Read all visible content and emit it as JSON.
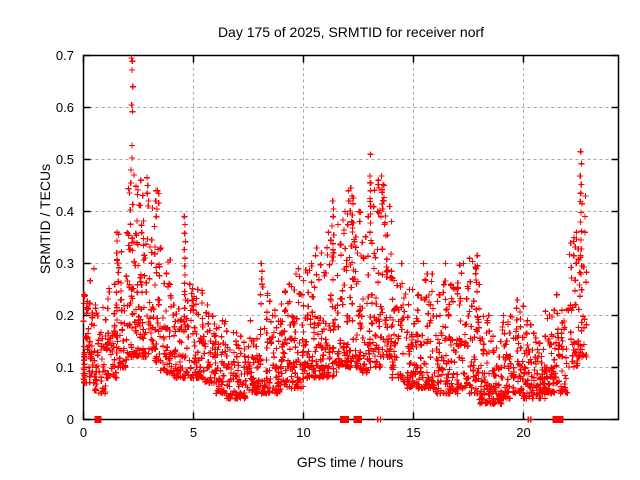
{
  "chart_data": {
    "type": "scatter",
    "title": "Day 175 of 2025, SRMTID for receiver norf",
    "xlabel": "GPS time / hours",
    "ylabel": "SRMTID / TECUs",
    "xlim": [
      0,
      24.32
    ],
    "ylim": [
      0,
      0.7
    ],
    "xtick_values": [
      0,
      5,
      10,
      15,
      20
    ],
    "xtick_labels": [
      "0",
      "5",
      "10",
      "15",
      "20"
    ],
    "ytick_values": [
      0,
      0.1,
      0.2,
      0.3,
      0.4,
      0.5,
      0.6,
      0.7
    ],
    "ytick_labels": [
      "0",
      "0.1",
      "0.2",
      "0.3",
      "0.4",
      "0.5",
      "0.6",
      "0.7"
    ],
    "grid": true,
    "legend": "none",
    "marker": "plus",
    "marker_color": "#ff0000",
    "grid_color": "#a6a6a6",
    "border_color": "#000000",
    "background_color": "#ffffff",
    "points_summary": {
      "note": "dense 30s-cadence scatter; bins = [start_hour, count, y_min, y_max, bin_width(default 0.5)]",
      "skew": 1.9,
      "seed": 20250175,
      "bins": [
        [
          0.0,
          16,
          0.07,
          0.24,
          0.05
        ],
        [
          0.0,
          52,
          0.07,
          0.29
        ],
        [
          0.5,
          48,
          0.05,
          0.22
        ],
        [
          1.0,
          50,
          0.08,
          0.26
        ],
        [
          1.5,
          58,
          0.1,
          0.36
        ],
        [
          2.0,
          72,
          0.12,
          0.48
        ],
        [
          2.5,
          60,
          0.12,
          0.46
        ],
        [
          3.0,
          55,
          0.11,
          0.44
        ],
        [
          3.5,
          50,
          0.09,
          0.33
        ],
        [
          4.0,
          45,
          0.08,
          0.22
        ],
        [
          4.5,
          48,
          0.08,
          0.26
        ],
        [
          5.0,
          50,
          0.08,
          0.25
        ],
        [
          5.5,
          48,
          0.07,
          0.22
        ],
        [
          6.0,
          48,
          0.05,
          0.19
        ],
        [
          6.5,
          46,
          0.04,
          0.17
        ],
        [
          7.0,
          46,
          0.04,
          0.16
        ],
        [
          7.5,
          48,
          0.05,
          0.19
        ],
        [
          8.0,
          50,
          0.05,
          0.26
        ],
        [
          8.5,
          48,
          0.05,
          0.21
        ],
        [
          9.0,
          50,
          0.06,
          0.26
        ],
        [
          9.5,
          52,
          0.06,
          0.28
        ],
        [
          10.0,
          52,
          0.08,
          0.3
        ],
        [
          10.5,
          52,
          0.08,
          0.32
        ],
        [
          11.0,
          55,
          0.08,
          0.36
        ],
        [
          11.5,
          56,
          0.1,
          0.4
        ],
        [
          12.0,
          60,
          0.1,
          0.44
        ],
        [
          12.5,
          55,
          0.09,
          0.4
        ],
        [
          13.0,
          55,
          0.1,
          0.46
        ],
        [
          13.5,
          52,
          0.12,
          0.45
        ],
        [
          14.0,
          50,
          0.08,
          0.3
        ],
        [
          14.5,
          48,
          0.06,
          0.25
        ],
        [
          15.0,
          48,
          0.06,
          0.24
        ],
        [
          15.5,
          48,
          0.06,
          0.28
        ],
        [
          16.0,
          50,
          0.05,
          0.3
        ],
        [
          16.5,
          52,
          0.05,
          0.26
        ],
        [
          17.0,
          52,
          0.06,
          0.3
        ],
        [
          17.5,
          50,
          0.05,
          0.31
        ],
        [
          18.0,
          52,
          0.03,
          0.2
        ],
        [
          18.5,
          52,
          0.03,
          0.16
        ],
        [
          19.0,
          50,
          0.04,
          0.2
        ],
        [
          19.5,
          50,
          0.05,
          0.23
        ],
        [
          20.0,
          52,
          0.04,
          0.19
        ],
        [
          20.5,
          52,
          0.04,
          0.16
        ],
        [
          21.0,
          52,
          0.05,
          0.21
        ],
        [
          21.5,
          48,
          0.05,
          0.24
        ],
        [
          22.0,
          42,
          0.1,
          0.36
        ],
        [
          22.5,
          34,
          0.12,
          0.43,
          0.38
        ]
      ]
    },
    "outlier_points": [
      [
        2.18,
        0.695
      ],
      [
        2.22,
        0.689
      ],
      [
        2.2,
        0.672
      ],
      [
        2.24,
        0.64
      ],
      [
        2.19,
        0.605
      ],
      [
        2.23,
        0.592
      ],
      [
        2.2,
        0.527
      ],
      [
        2.21,
        0.503
      ],
      [
        2.3,
        0.47
      ],
      [
        2.15,
        0.455
      ],
      [
        2.88,
        0.465
      ],
      [
        2.92,
        0.45
      ],
      [
        2.9,
        0.435
      ],
      [
        2.95,
        0.42
      ],
      [
        3.3,
        0.44
      ],
      [
        3.28,
        0.42
      ],
      [
        3.34,
        0.405
      ],
      [
        3.31,
        0.39
      ],
      [
        4.58,
        0.39
      ],
      [
        4.62,
        0.375
      ],
      [
        4.6,
        0.358
      ],
      [
        4.63,
        0.342
      ],
      [
        4.58,
        0.327
      ],
      [
        4.61,
        0.31
      ],
      [
        4.6,
        0.295
      ],
      [
        4.62,
        0.278
      ],
      [
        4.59,
        0.262
      ],
      [
        4.6,
        0.246
      ],
      [
        4.63,
        0.23
      ],
      [
        4.6,
        0.214
      ],
      [
        4.58,
        0.198
      ],
      [
        4.61,
        0.182
      ],
      [
        8.08,
        0.3
      ],
      [
        8.12,
        0.285
      ],
      [
        8.1,
        0.27
      ],
      [
        8.15,
        0.255
      ],
      [
        8.05,
        0.24
      ],
      [
        9.78,
        0.29
      ],
      [
        9.82,
        0.275
      ],
      [
        10.6,
        0.33
      ],
      [
        10.55,
        0.315
      ],
      [
        11.33,
        0.42
      ],
      [
        11.37,
        0.405
      ],
      [
        11.35,
        0.39
      ],
      [
        11.3,
        0.372
      ],
      [
        11.38,
        0.355
      ],
      [
        11.34,
        0.338
      ],
      [
        11.36,
        0.32
      ],
      [
        11.32,
        0.305
      ],
      [
        12.15,
        0.445
      ],
      [
        12.2,
        0.43
      ],
      [
        12.05,
        0.42
      ],
      [
        12.25,
        0.415
      ],
      [
        13.05,
        0.51
      ],
      [
        13.03,
        0.468
      ],
      [
        13.07,
        0.455
      ],
      [
        13.05,
        0.44
      ],
      [
        13.02,
        0.425
      ],
      [
        13.06,
        0.41
      ],
      [
        13.04,
        0.395
      ],
      [
        13.05,
        0.378
      ],
      [
        13.03,
        0.36
      ],
      [
        13.07,
        0.344
      ],
      [
        13.55,
        0.468
      ],
      [
        13.62,
        0.452
      ],
      [
        13.58,
        0.437
      ],
      [
        13.65,
        0.42
      ],
      [
        13.6,
        0.405
      ],
      [
        13.52,
        0.39
      ],
      [
        13.68,
        0.375
      ],
      [
        15.45,
        0.3
      ],
      [
        17.9,
        0.315
      ],
      [
        17.85,
        0.29
      ],
      [
        22.3,
        0.35
      ],
      [
        22.35,
        0.332
      ],
      [
        22.28,
        0.315
      ],
      [
        22.6,
        0.515
      ],
      [
        22.64,
        0.492
      ],
      [
        22.58,
        0.468
      ],
      [
        22.63,
        0.452
      ],
      [
        22.6,
        0.435
      ],
      [
        22.66,
        0.415
      ],
      [
        22.62,
        0.398
      ],
      [
        22.59,
        0.38
      ],
      [
        22.64,
        0.362
      ],
      [
        22.61,
        0.345
      ],
      [
        22.63,
        0.328
      ],
      [
        22.6,
        0.312
      ],
      [
        22.65,
        0.295
      ],
      [
        22.62,
        0.28
      ]
    ],
    "zero_square_hours": [
      0.65,
      11.83,
      11.91,
      12.43,
      12.51,
      21.48,
      21.66
    ],
    "zero_bar_hours": [
      13.38,
      13.5,
      20.22,
      20.33
    ]
  }
}
